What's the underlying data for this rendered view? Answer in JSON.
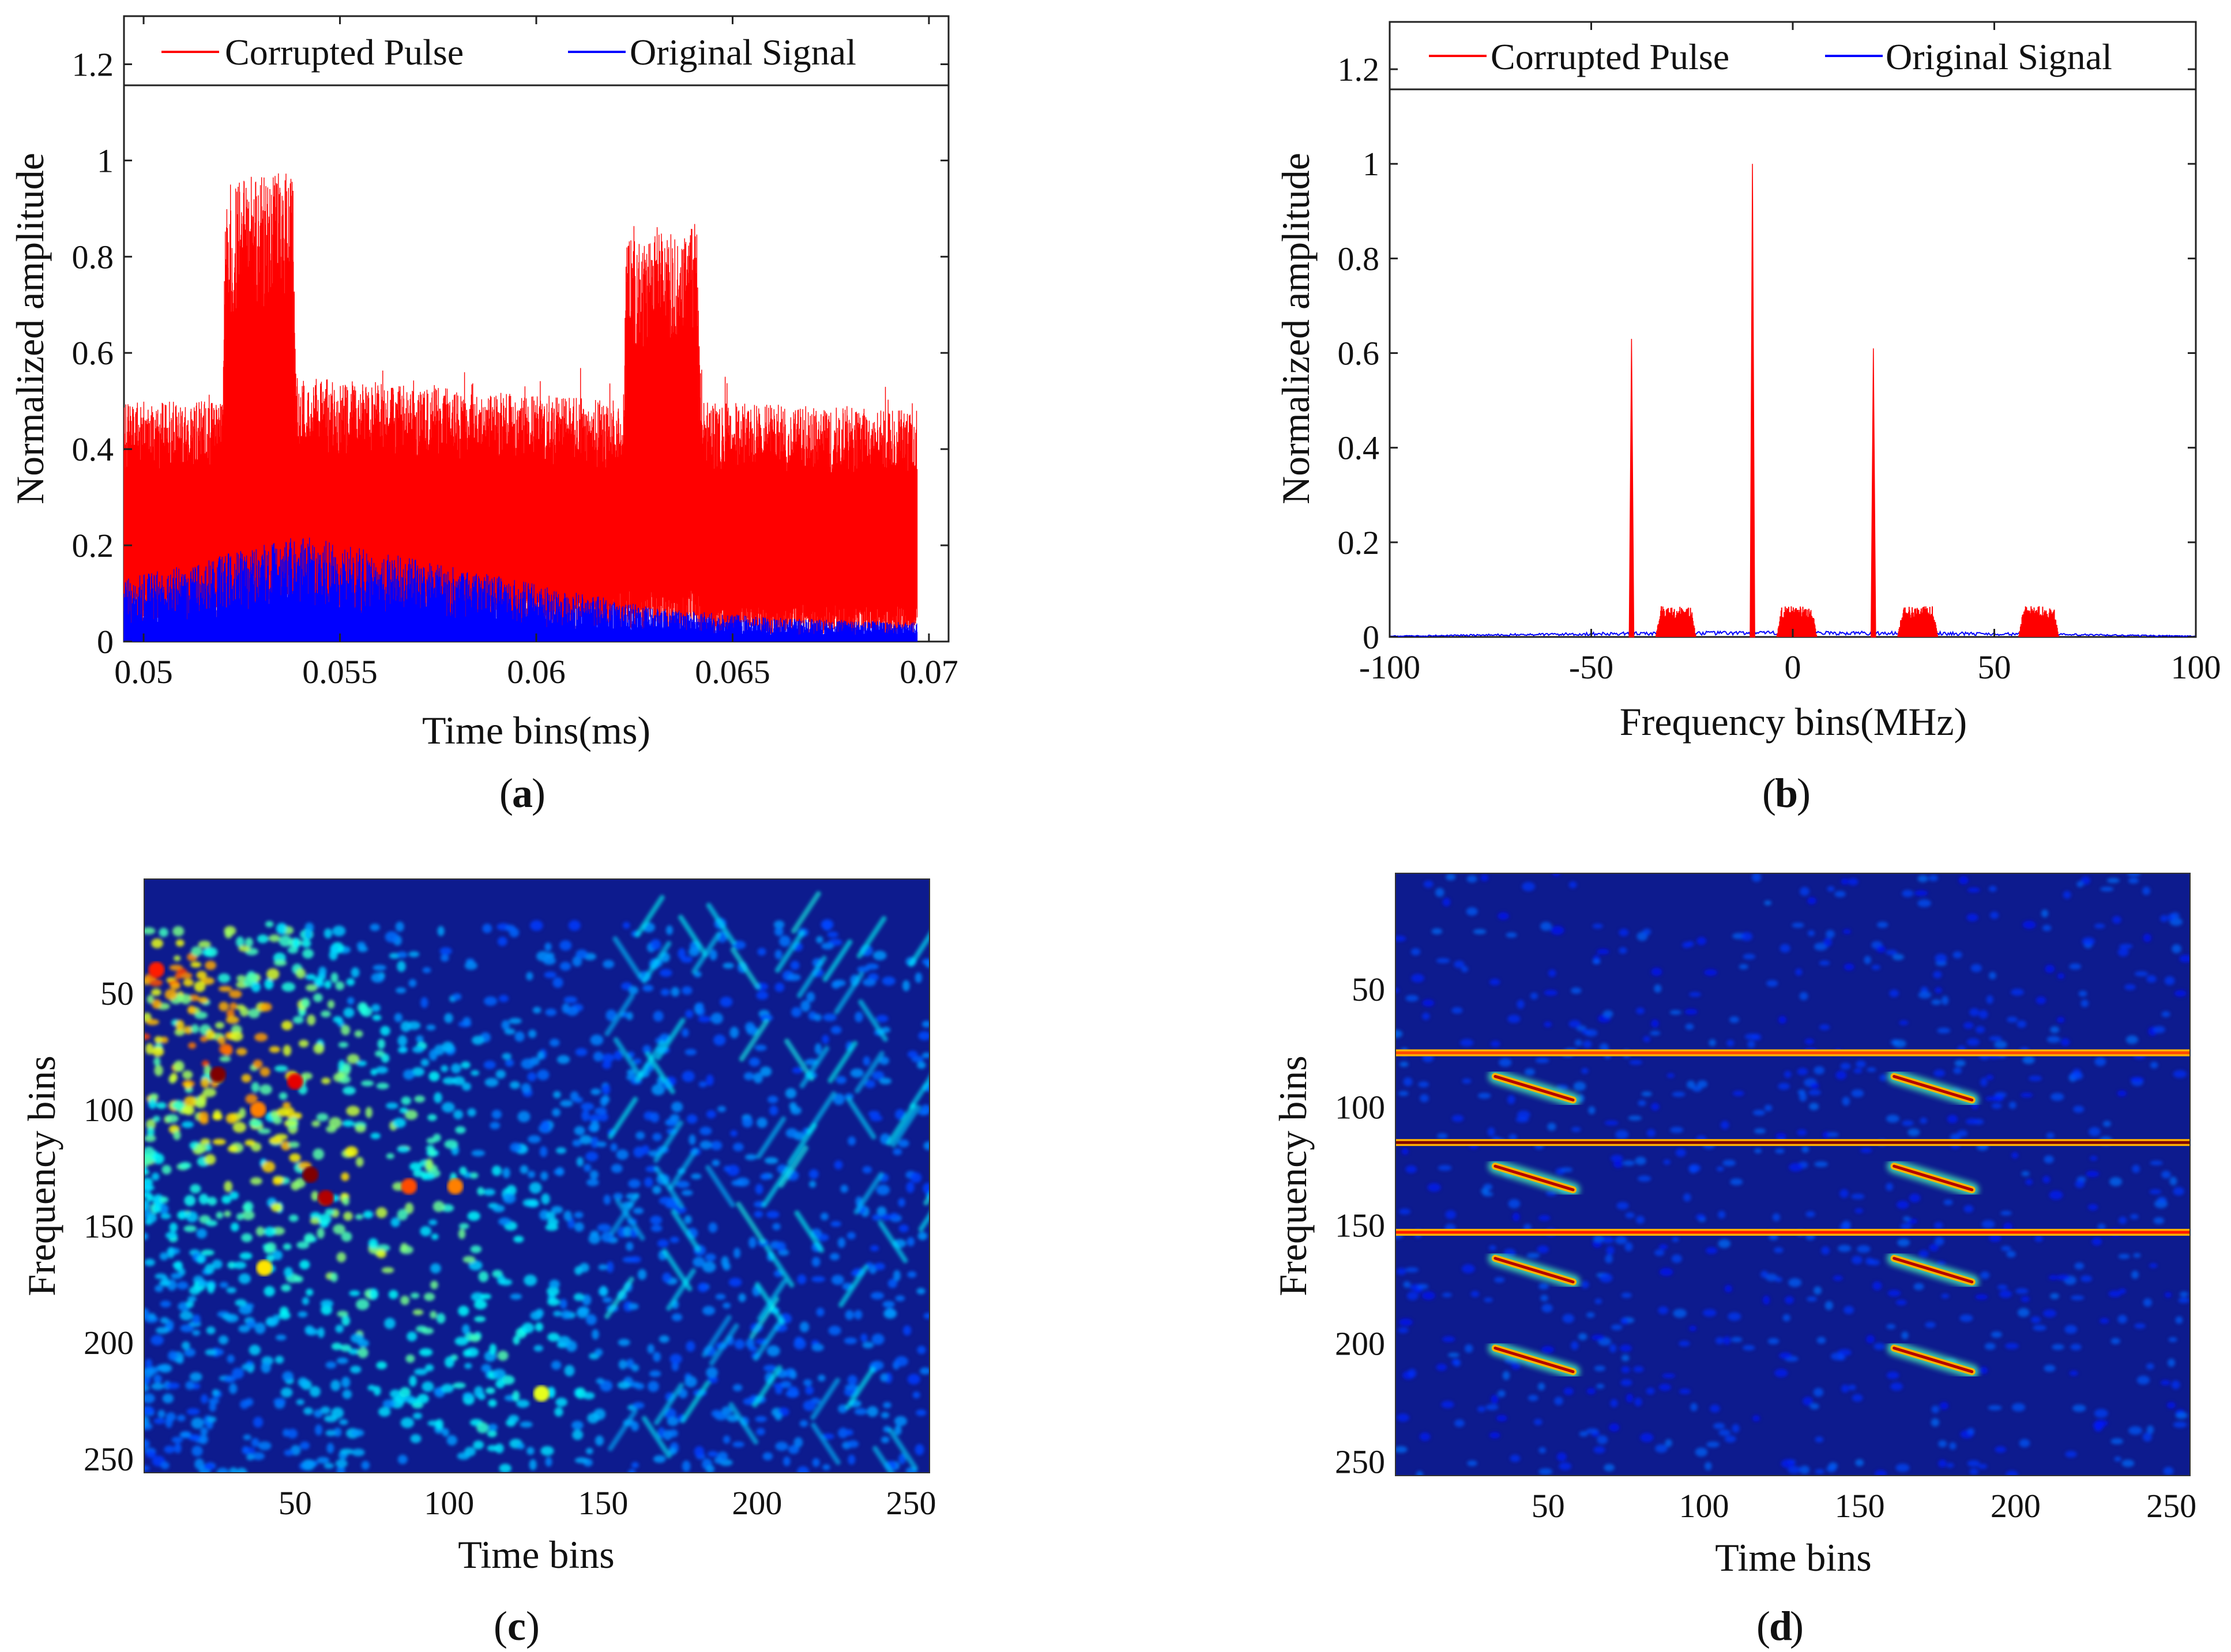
{
  "colors": {
    "corrupted": "#ff0000",
    "original": "#0000ff",
    "axis": "#222222",
    "spec_bg": "#0d1b8e"
  },
  "chart_data": [
    {
      "id": "a",
      "type": "line",
      "caption_letter": "a",
      "title": "",
      "xlabel": "Time bins(ms)",
      "ylabel": "Normalized amplitude",
      "xlim": [
        0.0495,
        0.0705
      ],
      "ylim": [
        0,
        1.3
      ],
      "xticks": [
        0.05,
        0.055,
        0.06,
        0.065,
        0.07
      ],
      "xtick_labels": [
        "0.05",
        "0.055",
        "0.06",
        "0.065",
        "0.07"
      ],
      "yticks": [
        0,
        0.2,
        0.4,
        0.6,
        0.8,
        1,
        1.2
      ],
      "ytick_labels": [
        "0",
        "0.2",
        "0.4",
        "0.6",
        "0.8",
        "1",
        "1.2"
      ],
      "legend": [
        "Corrupted Pulse",
        "Original Signal"
      ],
      "series": [
        {
          "name": "Corrupted Pulse",
          "description_envelope": "dense noisy signal",
          "x": [
            0.0495,
            0.052,
            0.0521,
            0.0538,
            0.0539,
            0.0622,
            0.0623,
            0.0641,
            0.0642,
            0.0697
          ],
          "y_upper": [
            0.5,
            0.5,
            0.95,
            0.98,
            0.55,
            0.5,
            0.85,
            0.86,
            0.5,
            0.48
          ],
          "y_lower": [
            0.1,
            0.1,
            0.15,
            0.15,
            0.1,
            0.1,
            0.12,
            0.12,
            0.08,
            0.08
          ]
        },
        {
          "name": "Original Signal",
          "x": [
            0.0495,
            0.052,
            0.054,
            0.057,
            0.06,
            0.063,
            0.066,
            0.0697
          ],
          "y_upper": [
            0.13,
            0.18,
            0.22,
            0.17,
            0.12,
            0.07,
            0.05,
            0.04
          ],
          "y_lower": [
            0,
            0,
            0,
            0,
            0,
            0,
            0,
            0
          ]
        }
      ]
    },
    {
      "id": "b",
      "type": "line",
      "caption_letter": "b",
      "title": "",
      "xlabel": "Frequency bins(MHz)",
      "ylabel": "Normalized amplitude",
      "xlim": [
        -100,
        100
      ],
      "ylim": [
        0,
        1.3
      ],
      "xticks": [
        -100,
        -50,
        0,
        50,
        100
      ],
      "xtick_labels": [
        "-100",
        "-50",
        "0",
        "50",
        "100"
      ],
      "yticks": [
        0,
        0.2,
        0.4,
        0.6,
        0.8,
        1,
        1.2
      ],
      "ytick_labels": [
        "0",
        "0.2",
        "0.4",
        "0.6",
        "0.8",
        "1",
        "1.2"
      ],
      "legend": [
        "Corrupted Pulse",
        "Original Signal"
      ],
      "series": [
        {
          "name": "Corrupted Pulse",
          "spikes": [
            {
              "x": -40,
              "y": 0.63
            },
            {
              "x": -10,
              "y": 1.0
            },
            {
              "x": 20,
              "y": 0.61
            }
          ],
          "bumps": [
            {
              "center": -29,
              "width": 10,
              "y": 0.065
            },
            {
              "center": 1,
              "width": 10,
              "y": 0.065
            },
            {
              "center": 31,
              "width": 10,
              "y": 0.065
            },
            {
              "center": 61,
              "width": 10,
              "y": 0.065
            }
          ]
        },
        {
          "name": "Original Signal",
          "x": [
            -100,
            -75,
            -50,
            -25,
            0,
            25,
            50,
            75,
            100
          ],
          "y": [
            0.002,
            0.005,
            0.008,
            0.01,
            0.01,
            0.01,
            0.008,
            0.005,
            0.002
          ]
        }
      ]
    },
    {
      "id": "c",
      "type": "heatmap",
      "caption_letter": "c",
      "title": "",
      "xlabel": "Time bins",
      "ylabel": "Frequency bins",
      "xlim": [
        1,
        256
      ],
      "ylim": [
        1,
        256
      ],
      "xticks": [
        50,
        100,
        150,
        200,
        250
      ],
      "xtick_labels": [
        "50",
        "100",
        "150",
        "200",
        "250"
      ],
      "yticks": [
        50,
        100,
        150,
        200,
        250
      ],
      "ytick_labels": [
        "50",
        "100",
        "150",
        "200",
        "250"
      ],
      "colormap": "jet",
      "features": "diffuse high-energy speckle concentrated on the left half (time bins 1-150), weaker diagonal streaks on the right",
      "hotspots": [
        {
          "x": 5,
          "y": 40,
          "v": 0.85
        },
        {
          "x": 25,
          "y": 85,
          "v": 1.0
        },
        {
          "x": 50,
          "y": 88,
          "v": 0.9
        },
        {
          "x": 55,
          "y": 128,
          "v": 1.0
        },
        {
          "x": 60,
          "y": 138,
          "v": 0.95
        },
        {
          "x": 38,
          "y": 100,
          "v": 0.75
        },
        {
          "x": 87,
          "y": 133,
          "v": 0.8
        },
        {
          "x": 102,
          "y": 133,
          "v": 0.75
        },
        {
          "x": 40,
          "y": 168,
          "v": 0.65
        },
        {
          "x": 130,
          "y": 222,
          "v": 0.6
        }
      ]
    },
    {
      "id": "d",
      "type": "heatmap",
      "caption_letter": "d",
      "title": "",
      "xlabel": "Time bins",
      "ylabel": "Frequency bins",
      "xlim": [
        1,
        256
      ],
      "ylim": [
        1,
        256
      ],
      "xticks": [
        50,
        100,
        150,
        200,
        250
      ],
      "xtick_labels": [
        "50",
        "100",
        "150",
        "200",
        "250"
      ],
      "yticks": [
        50,
        100,
        150,
        200,
        250
      ],
      "ytick_labels": [
        "50",
        "100",
        "150",
        "200",
        "250"
      ],
      "colormap": "jet",
      "lines": [
        {
          "x0": 1,
          "y0": 77,
          "x1": 256,
          "y1": 77,
          "v": 0.8
        },
        {
          "x0": 1,
          "y0": 115,
          "x1": 256,
          "y1": 115,
          "v": 1.0
        },
        {
          "x0": 1,
          "y0": 153,
          "x1": 256,
          "y1": 153,
          "v": 0.85
        },
        {
          "x0": 33,
          "y0": 87,
          "x1": 58,
          "y1": 97,
          "v": 0.95
        },
        {
          "x0": 33,
          "y0": 125,
          "x1": 58,
          "y1": 135,
          "v": 0.95
        },
        {
          "x0": 33,
          "y0": 164,
          "x1": 58,
          "y1": 174,
          "v": 0.95
        },
        {
          "x0": 33,
          "y0": 202,
          "x1": 58,
          "y1": 212,
          "v": 0.95
        },
        {
          "x0": 161,
          "y0": 87,
          "x1": 186,
          "y1": 97,
          "v": 0.95
        },
        {
          "x0": 161,
          "y0": 125,
          "x1": 186,
          "y1": 135,
          "v": 0.95
        },
        {
          "x0": 161,
          "y0": 164,
          "x1": 186,
          "y1": 174,
          "v": 0.95
        },
        {
          "x0": 161,
          "y0": 202,
          "x1": 186,
          "y1": 212,
          "v": 0.95
        }
      ]
    }
  ]
}
